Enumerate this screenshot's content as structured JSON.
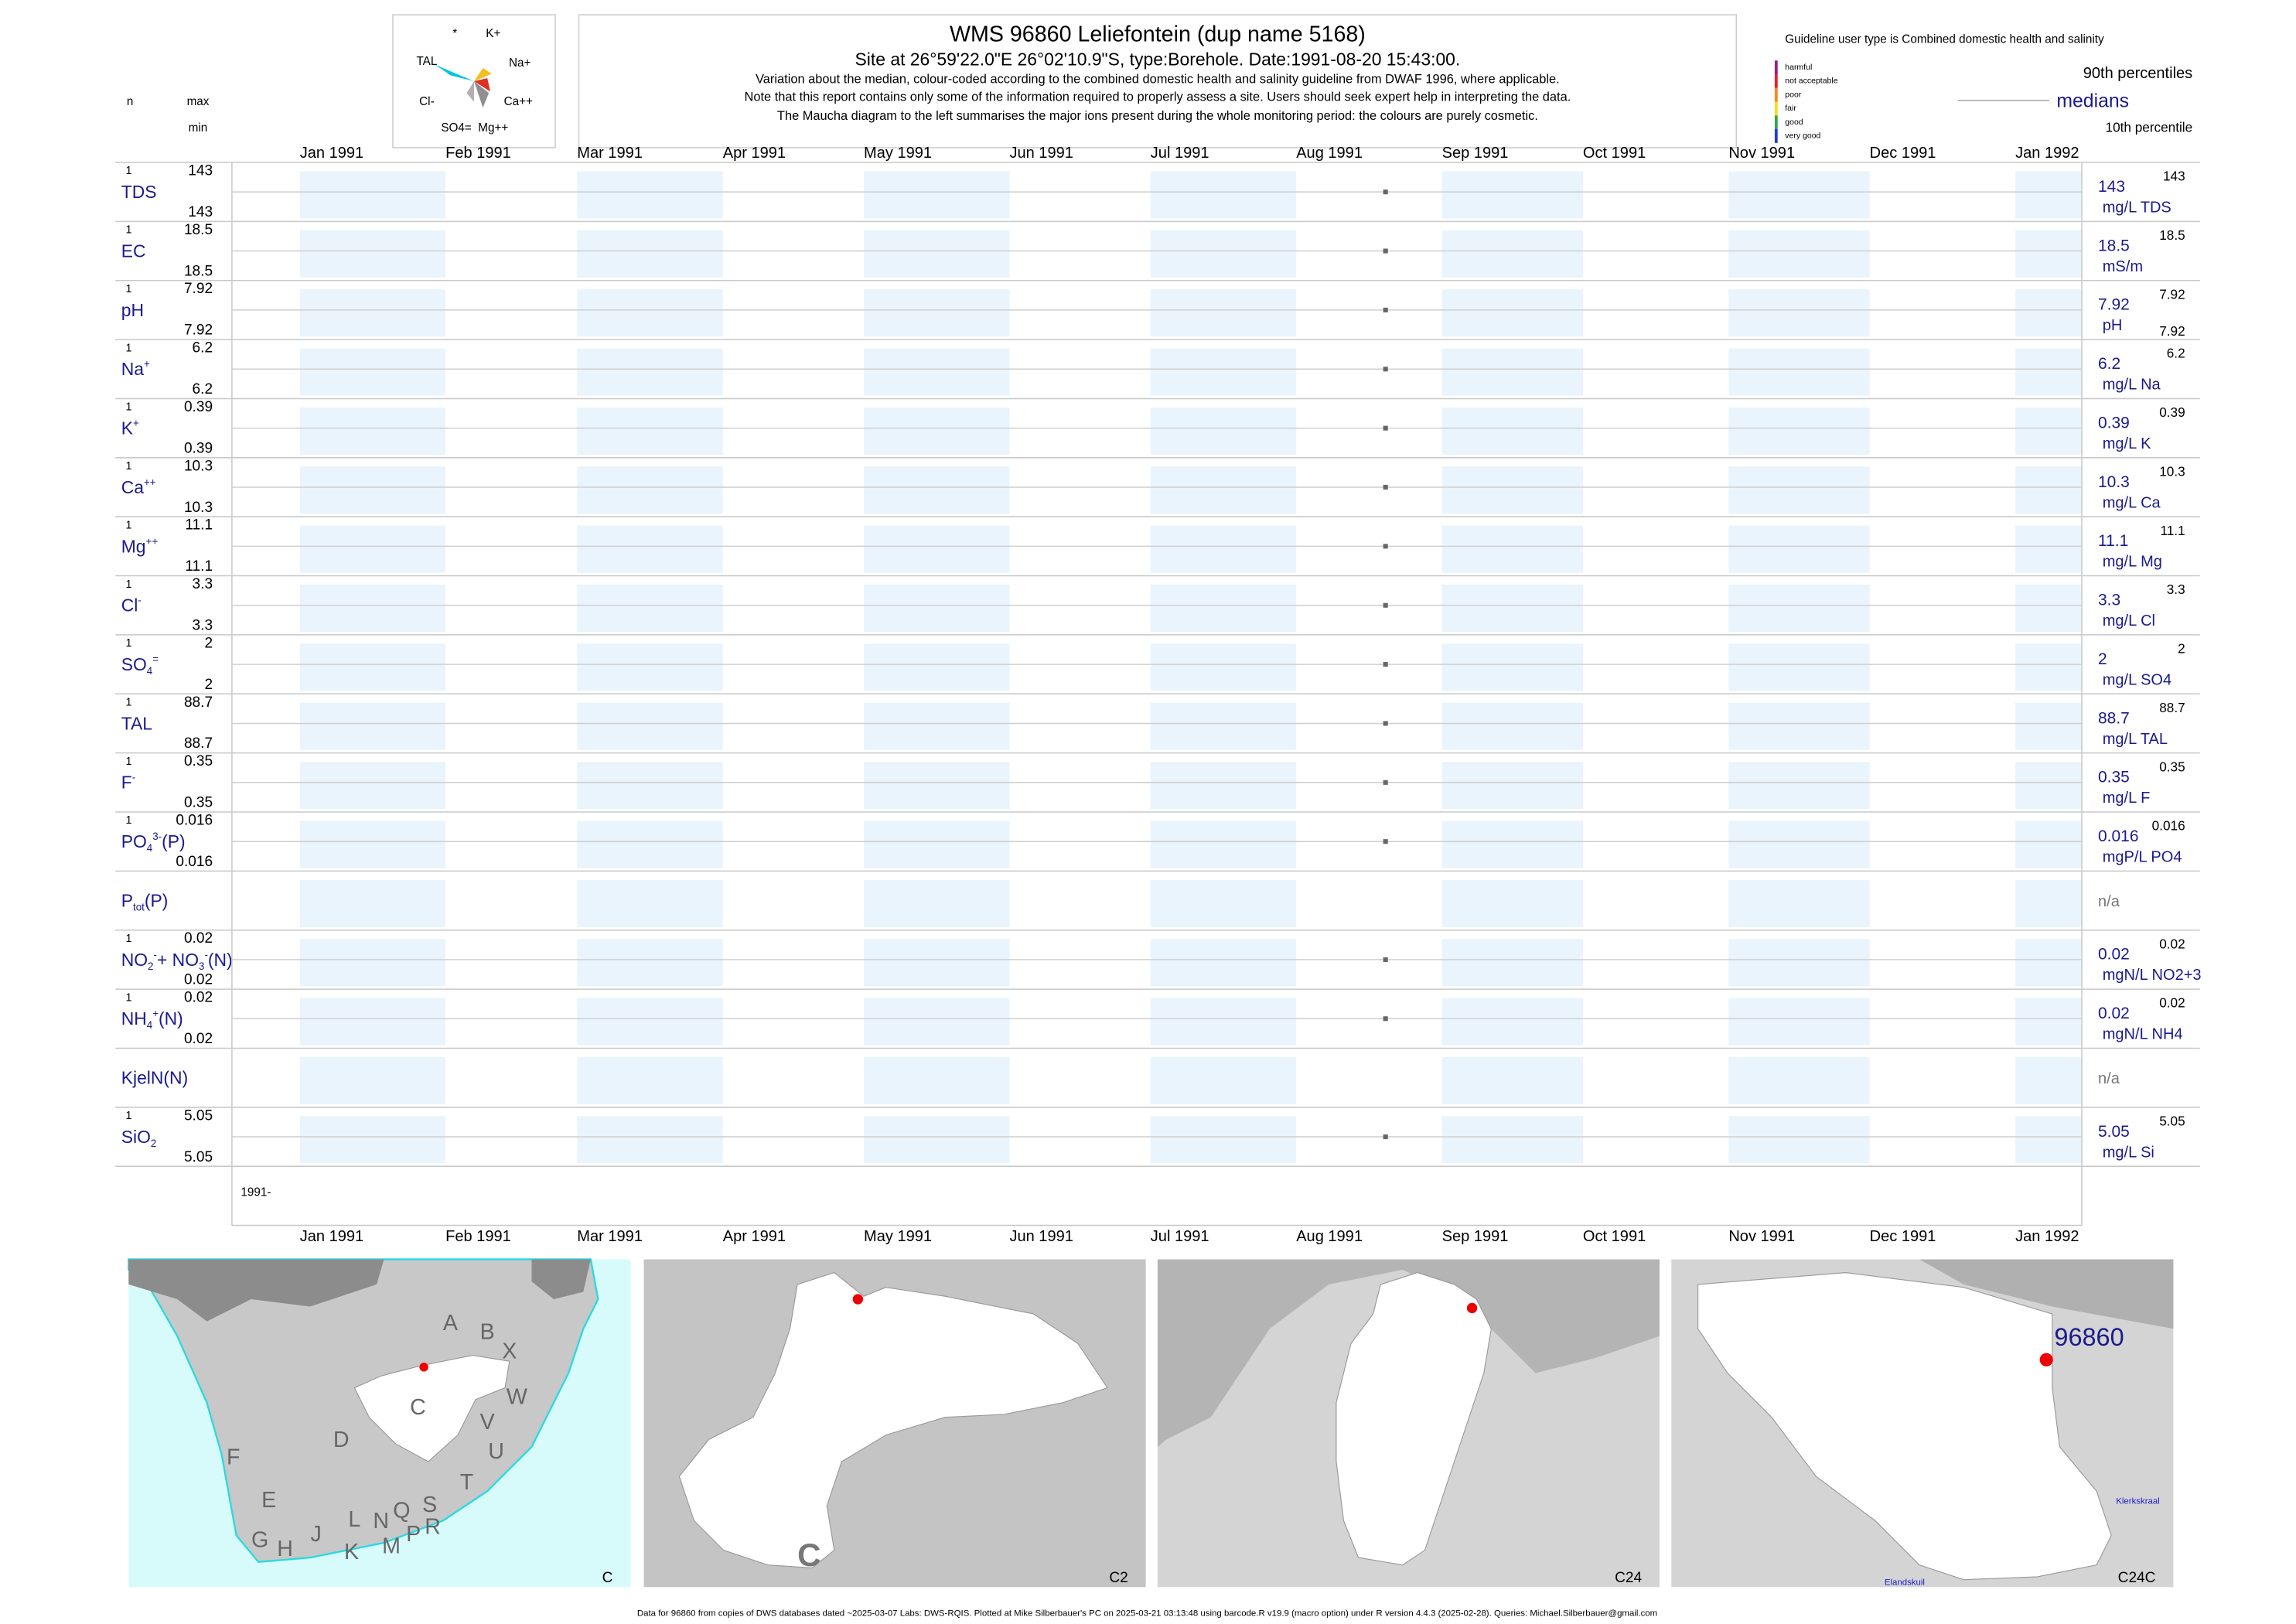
{
  "header": {
    "title": "WMS 96860  Leliefontein (dup name 5168)",
    "subtitle": "Site at 26°59'22.0\"E 26°02'10.9\"S, type:Borehole. Date:1991-08-20 15:43:00.",
    "notes": [
      "Variation about the median,  colour-coded according to the combined domestic health and salinity guideline from DWAF 1996, where applicable.",
      "Note that this report contains only some of the information required to properly assess a site. Users should seek expert help in interpreting the data.",
      "The Maucha diagram to the left summarises the major ions present during the whole monitoring period: the colours are purely cosmetic."
    ],
    "n_label": "n",
    "max_label": "max",
    "min_label": "min"
  },
  "maucha": {
    "labels": [
      "*",
      "K+",
      "TAL",
      "Na+",
      "Cl-",
      "Ca++",
      "SO4=",
      "Mg++"
    ]
  },
  "legend": {
    "title": "Guideline user type is Combined domestic health and salinity",
    "classes": [
      {
        "name": "harmful",
        "color": "#9b1a8f"
      },
      {
        "name": "not acceptable",
        "color": "#e8202a"
      },
      {
        "name": "poor",
        "color": "#f58a1f"
      },
      {
        "name": "fair",
        "color": "#f4e01b"
      },
      {
        "name": "good",
        "color": "#35a845"
      },
      {
        "name": "very good",
        "color": "#1f3ec9"
      }
    ],
    "p90": "90th percentiles",
    "median": "medians",
    "p10": "10th percentile"
  },
  "chart_data": {
    "type": "scatter",
    "xlim": [
      "1991-01",
      "1992-01"
    ],
    "xticks": [
      {
        "value": "1991-01",
        "label": "Jan 1991"
      },
      {
        "value": "1991-02",
        "label": "Feb 1991"
      },
      {
        "value": "1991-03",
        "label": "Mar 1991"
      },
      {
        "value": "1991-04",
        "label": "Apr 1991"
      },
      {
        "value": "1991-05",
        "label": "May 1991"
      },
      {
        "value": "1991-06",
        "label": "Jun 1991"
      },
      {
        "value": "1991-07",
        "label": "Jul 1991"
      },
      {
        "value": "1991-08",
        "label": "Aug 1991"
      },
      {
        "value": "1991-09",
        "label": "Sep 1991"
      },
      {
        "value": "1991-10",
        "label": "Oct 1991"
      },
      {
        "value": "1991-11",
        "label": "Nov 1991"
      },
      {
        "value": "1991-12",
        "label": "Dec 1991"
      },
      {
        "value": "1992-01",
        "label": "Jan 1992"
      }
    ],
    "start_label": "1991-",
    "point_color": "#666666",
    "series": [
      {
        "name": [
          [
            "TDS",
            ""
          ]
        ],
        "n": 1,
        "max": 143,
        "min": 143,
        "x": [
          "1991-08-20"
        ],
        "values": [
          143
        ],
        "median": 143,
        "p90": 143,
        "unit": "mg/L TDS"
      },
      {
        "name": [
          [
            "EC",
            ""
          ]
        ],
        "n": 1,
        "max": 18.5,
        "min": 18.5,
        "x": [
          "1991-08-20"
        ],
        "values": [
          18.5
        ],
        "median": 18.5,
        "p90": 18.5,
        "unit": "mS/m"
      },
      {
        "name": [
          [
            "pH",
            ""
          ]
        ],
        "n": 1,
        "max": 7.92,
        "min": 7.92,
        "x": [
          "1991-08-20"
        ],
        "values": [
          7.92
        ],
        "median": 7.92,
        "p90": 7.92,
        "p10": 7.92,
        "unit": "pH"
      },
      {
        "name": [
          [
            "Na",
            ""
          ],
          [
            "+",
            "sup"
          ]
        ],
        "n": 1,
        "max": 6.2,
        "min": 6.2,
        "x": [
          "1991-08-20"
        ],
        "values": [
          6.2
        ],
        "median": 6.2,
        "p90": 6.2,
        "unit": "mg/L Na"
      },
      {
        "name": [
          [
            "K",
            ""
          ],
          [
            "+",
            "sup"
          ]
        ],
        "n": 1,
        "max": 0.39,
        "min": 0.39,
        "x": [
          "1991-08-20"
        ],
        "values": [
          0.39
        ],
        "median": 0.39,
        "p90": 0.39,
        "unit": "mg/L K"
      },
      {
        "name": [
          [
            "Ca",
            ""
          ],
          [
            "++",
            "sup"
          ]
        ],
        "n": 1,
        "max": 10.3,
        "min": 10.3,
        "x": [
          "1991-08-20"
        ],
        "values": [
          10.3
        ],
        "median": 10.3,
        "p90": 10.3,
        "unit": "mg/L Ca"
      },
      {
        "name": [
          [
            "Mg",
            ""
          ],
          [
            "++",
            "sup"
          ]
        ],
        "n": 1,
        "max": 11.1,
        "min": 11.1,
        "x": [
          "1991-08-20"
        ],
        "values": [
          11.1
        ],
        "median": 11.1,
        "p90": 11.1,
        "unit": "mg/L Mg"
      },
      {
        "name": [
          [
            "Cl",
            ""
          ],
          [
            "-",
            "sup"
          ]
        ],
        "n": 1,
        "max": 3.3,
        "min": 3.3,
        "x": [
          "1991-08-20"
        ],
        "values": [
          3.3
        ],
        "median": 3.3,
        "p90": 3.3,
        "unit": "mg/L Cl"
      },
      {
        "name": [
          [
            "SO",
            ""
          ],
          [
            "4",
            "sub"
          ],
          [
            "=",
            "sup"
          ]
        ],
        "n": 1,
        "max": 2,
        "min": 2,
        "x": [
          "1991-08-20"
        ],
        "values": [
          2
        ],
        "median": 2,
        "p90": 2,
        "unit": "mg/L SO4"
      },
      {
        "name": [
          [
            "TAL",
            ""
          ]
        ],
        "n": 1,
        "max": 88.7,
        "min": 88.7,
        "x": [
          "1991-08-20"
        ],
        "values": [
          88.7
        ],
        "median": 88.7,
        "p90": 88.7,
        "unit": "mg/L TAL"
      },
      {
        "name": [
          [
            "F",
            ""
          ],
          [
            "-",
            "sup"
          ]
        ],
        "n": 1,
        "max": 0.35,
        "min": 0.35,
        "x": [
          "1991-08-20"
        ],
        "values": [
          0.35
        ],
        "median": 0.35,
        "p90": 0.35,
        "unit": "mg/L F"
      },
      {
        "name": [
          [
            "PO",
            ""
          ],
          [
            "4",
            "sub"
          ],
          [
            "3-",
            "sup"
          ],
          [
            "(P)",
            ""
          ]
        ],
        "n": 1,
        "max": 0.016,
        "min": 0.016,
        "x": [
          "1991-08-20"
        ],
        "values": [
          0.016
        ],
        "median": 0.016,
        "p90": 0.016,
        "unit": "mgP/L PO4"
      },
      {
        "name": [
          [
            "P",
            ""
          ],
          [
            "tot",
            "sub"
          ],
          [
            "(P)",
            ""
          ]
        ],
        "status": "n/a"
      },
      {
        "name": [
          [
            "NO",
            ""
          ],
          [
            "2",
            "sub"
          ],
          [
            "-",
            "sup"
          ],
          [
            "+ NO",
            ""
          ],
          [
            "3",
            "sub"
          ],
          [
            "-",
            "sup"
          ],
          [
            "(N)",
            ""
          ]
        ],
        "n": 1,
        "max": 0.02,
        "min": 0.02,
        "x": [
          "1991-08-20"
        ],
        "values": [
          0.02
        ],
        "median": 0.02,
        "p90": 0.02,
        "unit": "mgN/L NO2+3"
      },
      {
        "name": [
          [
            "NH",
            ""
          ],
          [
            "4",
            "sub"
          ],
          [
            "+",
            "sup"
          ],
          [
            "(N)",
            ""
          ]
        ],
        "n": 1,
        "max": 0.02,
        "min": 0.02,
        "x": [
          "1991-08-20"
        ],
        "values": [
          0.02
        ],
        "median": 0.02,
        "p90": 0.02,
        "unit": "mgN/L NH4"
      },
      {
        "name": [
          [
            "KjelN(N)",
            ""
          ]
        ],
        "status": "n/a"
      },
      {
        "name": [
          [
            "SiO",
            ""
          ],
          [
            "2",
            "sub"
          ]
        ],
        "n": 1,
        "max": 5.05,
        "min": 5.05,
        "x": [
          "1991-08-20"
        ],
        "values": [
          5.05
        ],
        "median": 5.05,
        "p90": 5.05,
        "unit": "mg/L Si"
      }
    ]
  },
  "maps": [
    {
      "name": "C",
      "labels": [
        "A",
        "B",
        "X",
        "W",
        "C",
        "V",
        "U",
        "D",
        "T",
        "F",
        "E",
        "G",
        "H",
        "J",
        "L",
        "N",
        "Q",
        "S",
        "K",
        "M",
        "P",
        "R"
      ]
    },
    {
      "name": "C2",
      "labels": [
        "C"
      ]
    },
    {
      "name": "C24",
      "labels": []
    },
    {
      "name": "C24C",
      "labels": [
        "96860",
        "Klerkskraal",
        "Elandskuil"
      ]
    }
  ],
  "footer": "Data for 96860 from copies of DWS databases dated ~2025-03-07 Labs: DWS-RQIS. Plotted at Mike Silberbauer's PC on 2025-03-21 03:13:48 using barcode.R v19.9 (macro option) under R version 4.4.3 (2025-02-28). Queries: Michael.Silberbauer@gmail.com"
}
